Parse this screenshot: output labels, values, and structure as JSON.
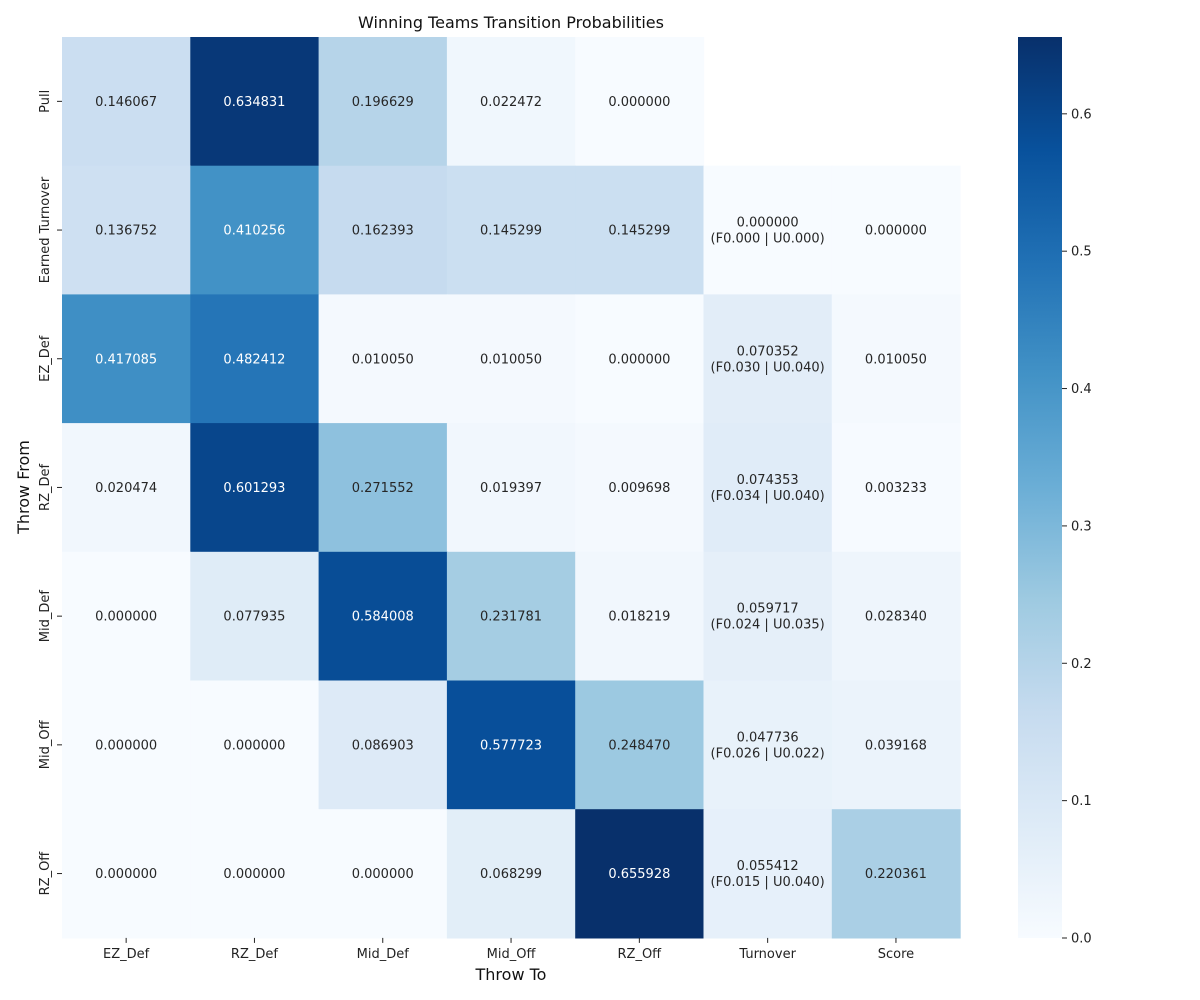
{
  "chart_data": {
    "type": "heatmap",
    "title": "Winning Teams Transition Probabilities",
    "xlabel": "Throw To",
    "ylabel": "Throw From",
    "x_categories": [
      "EZ_Def",
      "RZ_Def",
      "Mid_Def",
      "Mid_Off",
      "RZ_Off",
      "Turnover",
      "Score"
    ],
    "y_categories": [
      "Pull",
      "Earned Turnover",
      "EZ_Def",
      "RZ_Def",
      "Mid_Def",
      "Mid_Off",
      "RZ_Off"
    ],
    "values": [
      [
        0.146067,
        0.634831,
        0.196629,
        0.022472,
        0.0,
        null,
        null
      ],
      [
        0.136752,
        0.410256,
        0.162393,
        0.145299,
        0.145299,
        0.0,
        0.0
      ],
      [
        0.417085,
        0.482412,
        0.01005,
        0.01005,
        0.0,
        0.070352,
        0.01005
      ],
      [
        0.020474,
        0.601293,
        0.271552,
        0.019397,
        0.009698,
        0.074353,
        0.003233
      ],
      [
        0.0,
        0.077935,
        0.584008,
        0.231781,
        0.018219,
        0.059717,
        0.02834
      ],
      [
        0.0,
        0.0,
        0.086903,
        0.577723,
        0.24847,
        0.047736,
        0.039168
      ],
      [
        0.0,
        0.0,
        0.0,
        0.068299,
        0.655928,
        0.055412,
        0.220361
      ]
    ],
    "cell_labels": [
      [
        "0.146067",
        "0.634831",
        "0.196629",
        "0.022472",
        "0.000000",
        "",
        ""
      ],
      [
        "0.136752",
        "0.410256",
        "0.162393",
        "0.145299",
        "0.145299",
        "0.000000\n(F0.000 | U0.000)",
        "0.000000"
      ],
      [
        "0.417085",
        "0.482412",
        "0.010050",
        "0.010050",
        "0.000000",
        "0.070352\n(F0.030 | U0.040)",
        "0.010050"
      ],
      [
        "0.020474",
        "0.601293",
        "0.271552",
        "0.019397",
        "0.009698",
        "0.074353\n(F0.034 | U0.040)",
        "0.003233"
      ],
      [
        "0.000000",
        "0.077935",
        "0.584008",
        "0.231781",
        "0.018219",
        "0.059717\n(F0.024 | U0.035)",
        "0.028340"
      ],
      [
        "0.000000",
        "0.000000",
        "0.086903",
        "0.577723",
        "0.248470",
        "0.047736\n(F0.026 | U0.022)",
        "0.039168"
      ],
      [
        "0.000000",
        "0.000000",
        "0.000000",
        "0.068299",
        "0.655928",
        "0.055412\n(F0.015 | U0.040)",
        "0.220361"
      ]
    ],
    "colormap": "Blues",
    "vmin": 0.0,
    "vmax": 0.655928,
    "colorbar_ticks": [
      0.0,
      0.1,
      0.2,
      0.3,
      0.4,
      0.5,
      0.6
    ],
    "colorbar_tick_labels": [
      "0.0",
      "0.1",
      "0.2",
      "0.3",
      "0.4",
      "0.5",
      "0.6"
    ],
    "colors": {
      "text_on_dark": "#ffffff",
      "text_on_light": "#262626",
      "blues": [
        "#f7fbff",
        "#deebf7",
        "#c6dbef",
        "#9ecae1",
        "#6baed6",
        "#4292c6",
        "#2171b5",
        "#08519c",
        "#08306b"
      ]
    }
  }
}
